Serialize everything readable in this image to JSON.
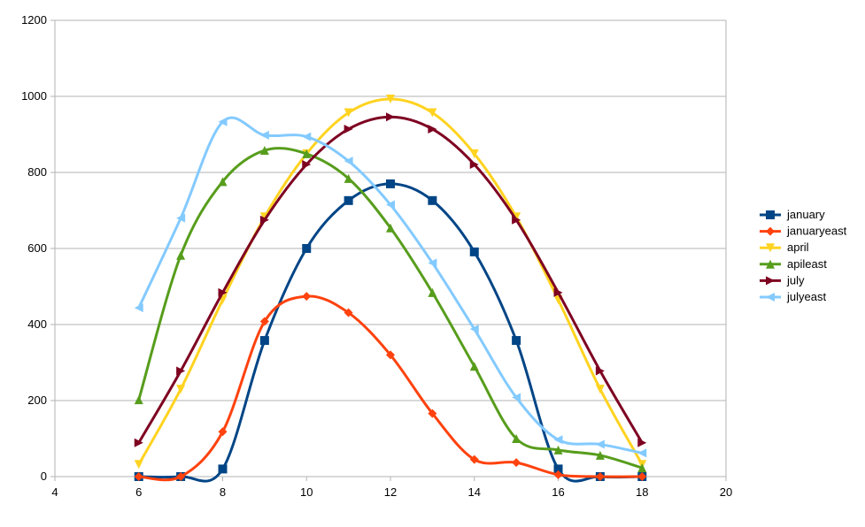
{
  "chart_data": {
    "type": "line",
    "title": "",
    "xlabel": "",
    "ylabel": "",
    "xlim": [
      4,
      20
    ],
    "ylim": [
      0,
      1200
    ],
    "x_ticks": [
      4,
      6,
      8,
      10,
      12,
      14,
      16,
      18,
      20
    ],
    "y_ticks": [
      0,
      200,
      400,
      600,
      800,
      1000,
      1200
    ],
    "grid": {
      "x": false,
      "y": true
    },
    "legend_position": "right",
    "x": [
      6,
      7,
      8,
      9,
      10,
      11,
      12,
      13,
      14,
      15,
      16,
      17,
      18
    ],
    "series": [
      {
        "name": "january",
        "color": "#004586",
        "marker": "square",
        "values": [
          0,
          0,
          20,
          358,
          600,
          726,
          770,
          726,
          591,
          358,
          20,
          0,
          0
        ]
      },
      {
        "name": "januaryeast",
        "color": "#ff420e",
        "marker": "diamond",
        "values": [
          0,
          0,
          118,
          408,
          474,
          431,
          320,
          166,
          45,
          37,
          5,
          0,
          0
        ]
      },
      {
        "name": "april",
        "color": "#ffd320",
        "marker": "triangle-down",
        "values": [
          32,
          230,
          465,
          683,
          849,
          957,
          993,
          957,
          849,
          683,
          465,
          230,
          32
        ]
      },
      {
        "name": "ap(auto)",
        "name_override": "apileast",
        "color": "#579d1c",
        "marker": "triangle-up",
        "values": [
          202,
          582,
          776,
          858,
          849,
          784,
          654,
          484,
          290,
          100,
          70,
          56,
          23
        ]
      },
      {
        "name": "july",
        "color": "#7e0021",
        "marker": "triangle-right",
        "values": [
          89,
          278,
          484,
          675,
          821,
          914,
          946,
          914,
          821,
          675,
          484,
          278,
          89
        ]
      },
      {
        "name": "julyeast",
        "color": "#83caff",
        "marker": "triangle-left",
        "values": [
          444,
          680,
          933,
          898,
          894,
          830,
          715,
          562,
          388,
          208,
          97,
          85,
          62
        ]
      }
    ]
  }
}
